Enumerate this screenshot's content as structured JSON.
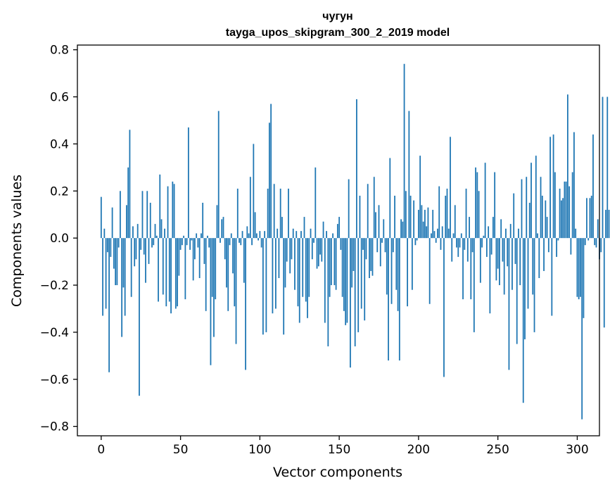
{
  "chart_data": {
    "type": "bar",
    "title": "чугун",
    "subtitle": "tayga_upos_skipgram_300_2_2019 model",
    "xlabel": "Vector components",
    "ylabel": "Components values",
    "xlim": [
      -15,
      314
    ],
    "ylim": [
      -0.84,
      0.82
    ],
    "x_ticks": [
      0,
      50,
      100,
      150,
      200,
      250,
      300
    ],
    "x_tick_labels": [
      "0",
      "50",
      "100",
      "150",
      "200",
      "250",
      "300"
    ],
    "y_ticks": [
      -0.8,
      -0.6,
      -0.4,
      -0.2,
      0.0,
      0.2,
      0.4,
      0.6,
      0.8
    ],
    "y_tick_labels": [
      "−0.8",
      "−0.6",
      "−0.4",
      "−0.2",
      "0.0",
      "0.2",
      "0.4",
      "0.6",
      "0.8"
    ],
    "color": "#1f77b4",
    "values": [
      0.175,
      -0.33,
      0.04,
      -0.3,
      -0.06,
      -0.57,
      -0.08,
      0.13,
      -0.13,
      -0.2,
      -0.2,
      -0.04,
      0.2,
      -0.42,
      -0.21,
      -0.33,
      0.14,
      0.3,
      0.46,
      -0.25,
      0.05,
      -0.12,
      -0.09,
      0.06,
      -0.67,
      -0.05,
      0.2,
      -0.07,
      -0.19,
      0.2,
      -0.11,
      0.15,
      -0.04,
      -0.03,
      0.06,
      0.01,
      -0.27,
      0.27,
      0.08,
      -0.24,
      0.04,
      -0.29,
      0.22,
      -0.27,
      -0.32,
      0.24,
      0.23,
      -0.3,
      -0.29,
      -0.16,
      -0.05,
      -0.03,
      0.01,
      -0.26,
      -0.03,
      0.47,
      -0.05,
      -0.01,
      -0.18,
      -0.09,
      0.02,
      -0.04,
      -0.17,
      0.02,
      0.15,
      -0.11,
      -0.31,
      0.01,
      -0.04,
      -0.54,
      -0.25,
      -0.42,
      -0.26,
      0.14,
      0.54,
      -0.02,
      0.08,
      0.09,
      -0.09,
      -0.21,
      -0.31,
      -0.03,
      0.02,
      -0.15,
      -0.29,
      -0.45,
      0.21,
      -0.02,
      -0.03,
      0.03,
      -0.19,
      -0.56,
      0.05,
      0.02,
      0.26,
      -0.03,
      0.4,
      0.11,
      0.02,
      -0.01,
      0.03,
      -0.04,
      -0.41,
      0.03,
      -0.4,
      0.21,
      0.49,
      0.57,
      -0.32,
      0.23,
      -0.3,
      0.04,
      -0.17,
      0.21,
      0.09,
      -0.41,
      -0.21,
      -0.1,
      0.21,
      -0.15,
      -0.09,
      0.04,
      -0.22,
      0.03,
      -0.29,
      -0.36,
      0.03,
      -0.25,
      0.09,
      -0.27,
      -0.34,
      -0.25,
      0.04,
      -0.09,
      -0.02,
      0.3,
      -0.13,
      -0.12,
      -0.07,
      -0.1,
      0.07,
      -0.36,
      0.03,
      -0.46,
      -0.25,
      -0.2,
      0.02,
      -0.2,
      -0.22,
      0.06,
      0.09,
      -0.05,
      -0.25,
      -0.31,
      -0.37,
      -0.36,
      0.25,
      -0.55,
      -0.21,
      -0.14,
      -0.46,
      0.59,
      -0.4,
      0.18,
      -0.3,
      -0.05,
      -0.35,
      -0.09,
      0.23,
      -0.17,
      -0.14,
      -0.16,
      0.26,
      0.11,
      -0.06,
      0.14,
      -0.12,
      -0.02,
      0.08,
      -0.06,
      -0.24,
      -0.52,
      0.34,
      -0.28,
      -0.06,
      0.18,
      -0.22,
      -0.31,
      -0.52,
      0.08,
      0.07,
      0.74,
      0.2,
      -0.29,
      0.54,
      0.18,
      -0.22,
      0.16,
      -0.03,
      -0.01,
      0.12,
      0.35,
      0.14,
      0.07,
      0.12,
      0.05,
      0.13,
      -0.28,
      0.02,
      0.12,
      0.03,
      -0.02,
      0.04,
      0.22,
      -0.05,
      0.05,
      -0.59,
      0.18,
      0.21,
      0.04,
      0.43,
      -0.1,
      0.02,
      0.14,
      -0.04,
      -0.08,
      -0.04,
      0.02,
      -0.26,
      -0.05,
      0.21,
      -0.1,
      0.09,
      -0.26,
      -0.06,
      -0.4,
      0.3,
      0.28,
      0.2,
      -0.19,
      -0.04,
      0.01,
      0.32,
      -0.08,
      0.05,
      -0.32,
      -0.07,
      0.09,
      0.28,
      -0.18,
      -0.13,
      -0.2,
      0.08,
      -0.1,
      -0.24,
      0.04,
      -0.12,
      -0.56,
      0.06,
      -0.22,
      0.19,
      -0.11,
      -0.45,
      0.04,
      -0.2,
      0.25,
      -0.7,
      -0.43,
      0.26,
      -0.3,
      0.15,
      0.32,
      -0.24,
      -0.4,
      0.35,
      0.02,
      -0.17,
      0.26,
      0.18,
      -0.14,
      0.16,
      0.09,
      -0.06,
      0.43,
      -0.33,
      0.44,
      0.28,
      -0.08,
      -0.01,
      0.21,
      0.16,
      0.17,
      0.24,
      0.24,
      0.61,
      0.22,
      -0.07,
      0.28,
      0.45,
      0.04,
      -0.25,
      -0.26,
      -0.25,
      -0.77,
      -0.34,
      -0.03,
      0.17,
      -0.01,
      0.17,
      0.18,
      0.44,
      -0.03,
      -0.04,
      0.08,
      -0.09,
      -0.06,
      0.6,
      -0.38,
      0.12,
      0.6,
      0.12
    ]
  }
}
